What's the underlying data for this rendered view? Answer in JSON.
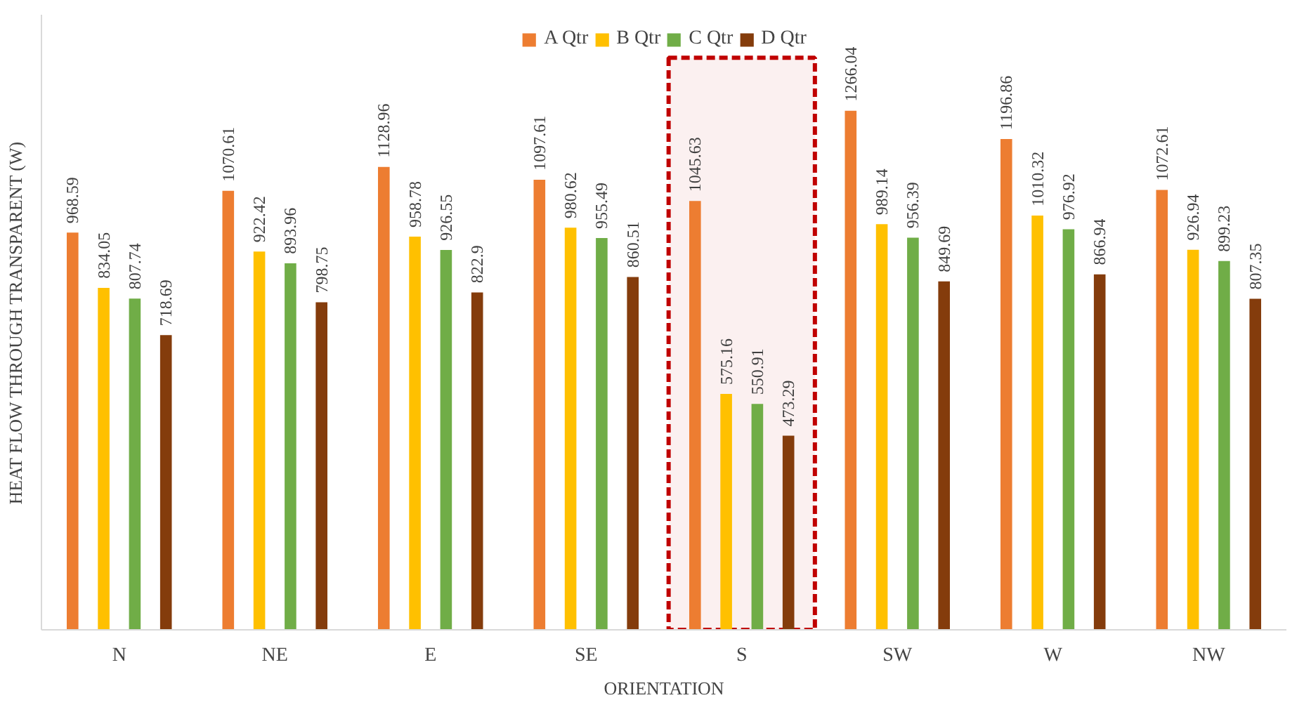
{
  "chart_data": {
    "type": "bar",
    "xlabel": "ORIENTATION",
    "ylabel": "HEAT FLOW THROUGH TRANSPARENT (W)",
    "categories": [
      "N",
      "NE",
      "E",
      "SE",
      "S",
      "SW",
      "W",
      "NW"
    ],
    "series": [
      {
        "name": "A Qtr",
        "color": "#ed7d31",
        "values": [
          968.59,
          1070.61,
          1128.96,
          1097.61,
          1045.63,
          1266.04,
          1196.86,
          1072.61
        ]
      },
      {
        "name": "B Qtr",
        "color": "#ffc000",
        "values": [
          834.05,
          922.42,
          958.78,
          980.62,
          575.16,
          989.14,
          1010.32,
          926.94
        ]
      },
      {
        "name": "C Qtr",
        "color": "#70ad47",
        "values": [
          807.74,
          893.96,
          926.55,
          955.49,
          550.91,
          956.39,
          976.92,
          899.23
        ]
      },
      {
        "name": "D Qtr",
        "color": "#843c0c",
        "values": [
          718.69,
          798.75,
          822.9,
          860.51,
          473.29,
          849.69,
          866.94,
          807.35
        ]
      }
    ],
    "ylim": [
      0,
      1500
    ],
    "tick_labels": "x",
    "data_labels": true,
    "legend": "top",
    "grid": false,
    "bands": [
      {
        "axis": "x",
        "from": "S",
        "to": "S",
        "color": "#c00000"
      }
    ]
  }
}
